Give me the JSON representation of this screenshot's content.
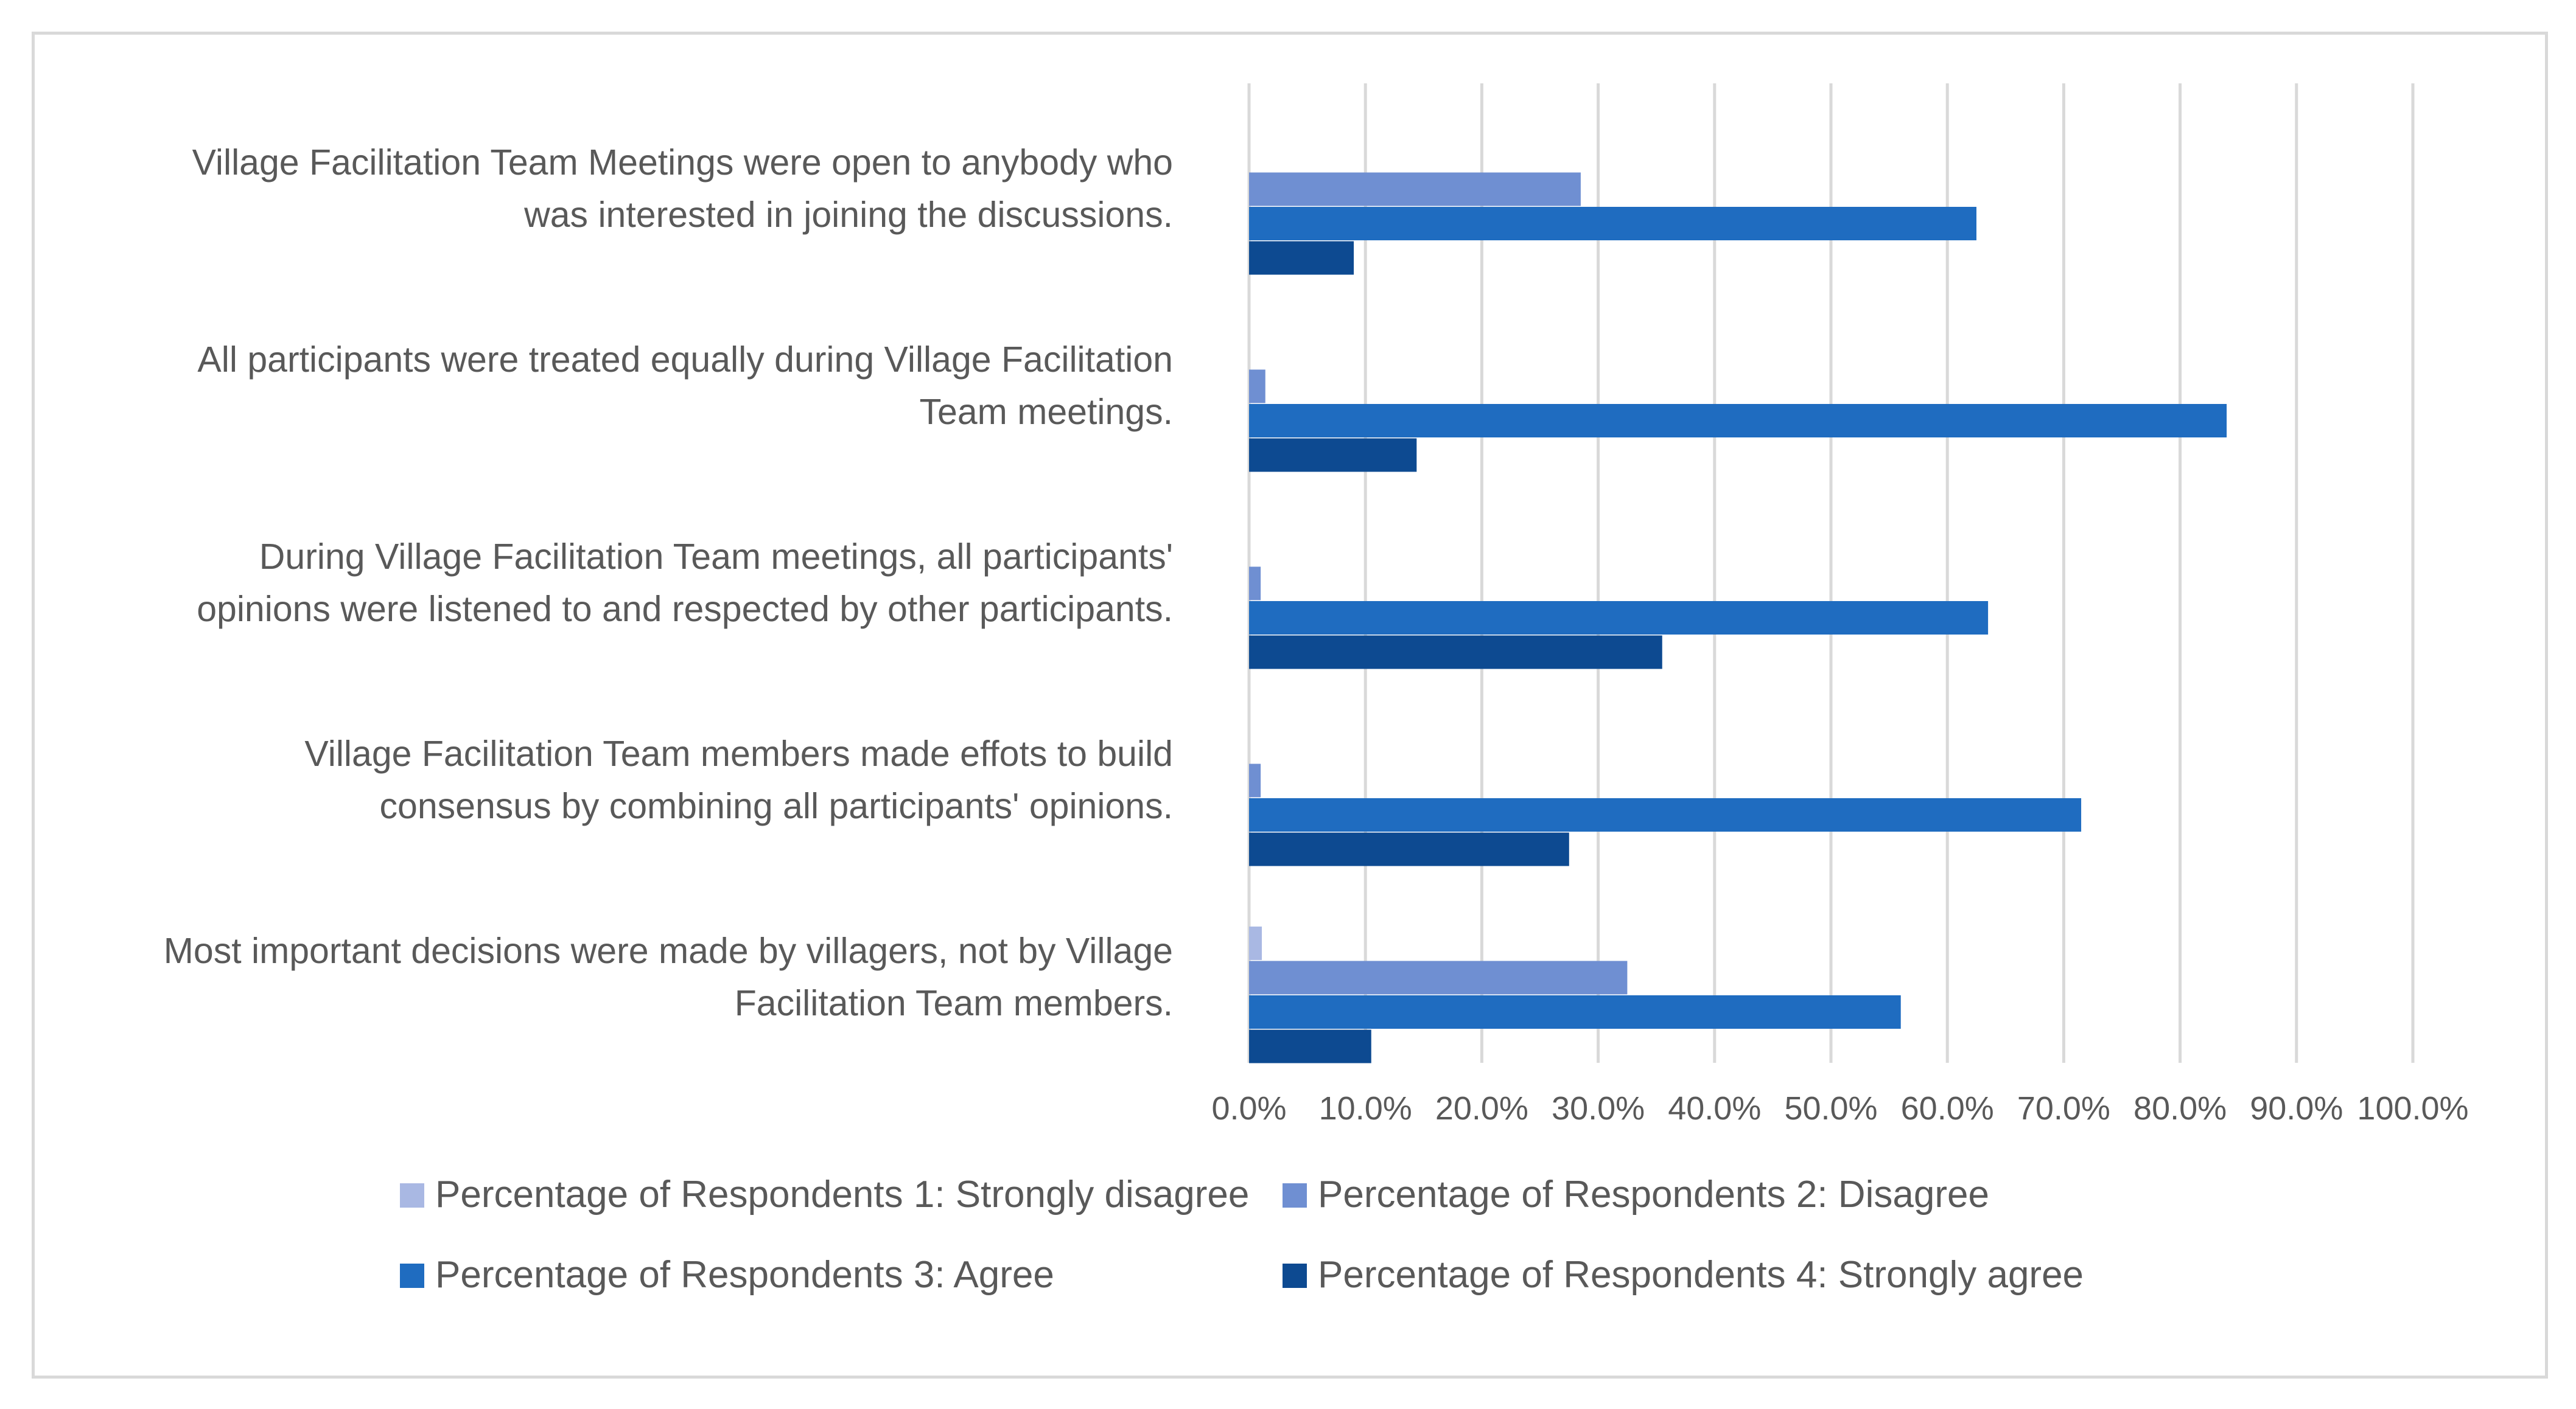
{
  "chart_data": {
    "type": "bar",
    "orientation": "horizontal",
    "title": "",
    "xlabel": "",
    "ylabel": "",
    "xlim": [
      0,
      100
    ],
    "x_ticks": [
      "0.0%",
      "10.0%",
      "20.0%",
      "30.0%",
      "40.0%",
      "50.0%",
      "60.0%",
      "70.0%",
      "80.0%",
      "90.0%",
      "100.0%"
    ],
    "grid": true,
    "legend_position": "bottom",
    "categories": [
      {
        "lines": [
          "Village Facilitation Team Meetings were open to anybody who",
          "was interested in joining the discussions."
        ]
      },
      {
        "lines": [
          "All participants were treated equally during Village Facilitation",
          "Team meetings."
        ]
      },
      {
        "lines": [
          "During Village Facilitation Team meetings, all participants'",
          "opinions were listened to and respected by other participants."
        ]
      },
      {
        "lines": [
          "Village Facilitation Team members made effots to build",
          "consensus by combining all participants' opinions."
        ]
      },
      {
        "lines": [
          "Most important decisions were made by villagers, not by Village",
          "Facilitation Team members."
        ]
      }
    ],
    "series": [
      {
        "name": "Percentage of Respondents 1: Strongly disagree",
        "color": "#a9b8e3",
        "values": [
          0,
          0,
          0,
          0,
          1.1
        ]
      },
      {
        "name": "Percentage of Respondents 2: Disagree",
        "color": "#6f8fd2",
        "values": [
          28.5,
          1.4,
          1.0,
          1.0,
          32.5
        ]
      },
      {
        "name": "Percentage of Respondents 3: Agree",
        "color": "#1f6cc0",
        "values": [
          62.5,
          84.0,
          63.5,
          71.5,
          56.0
        ]
      },
      {
        "name": "Percentage of Respondents 4: Strongly agree",
        "color": "#0d4a91",
        "values": [
          9.0,
          14.4,
          35.5,
          27.5,
          10.5
        ]
      }
    ]
  }
}
